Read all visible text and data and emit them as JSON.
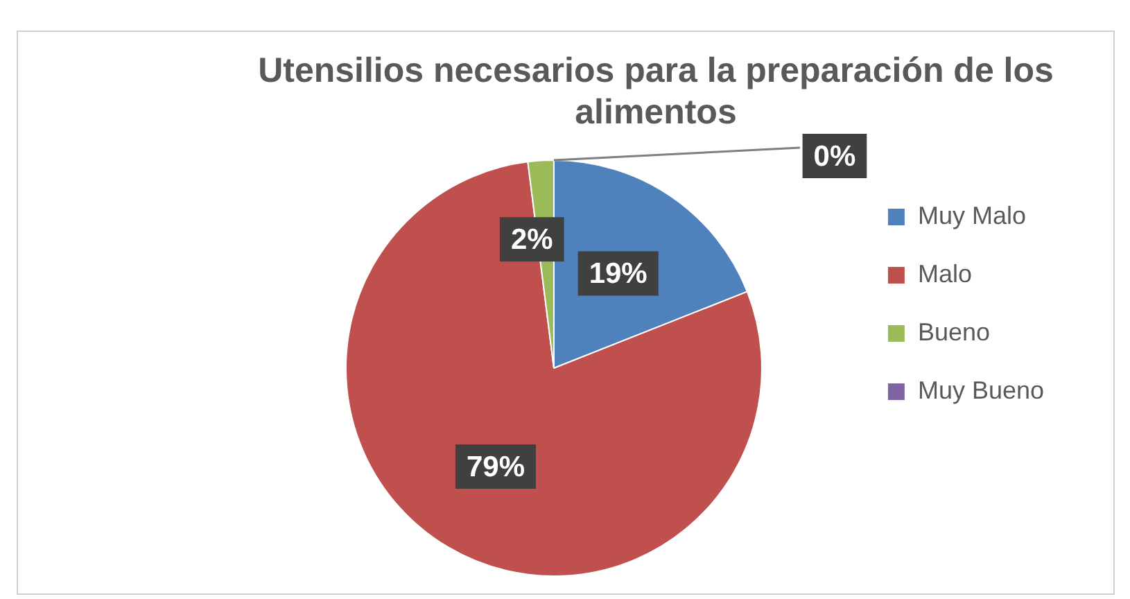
{
  "chart_data": {
    "type": "pie",
    "title": "Utensilios necesarios para la preparación de los alimentos",
    "categories": [
      "Muy Malo",
      "Malo",
      "Bueno",
      "Muy Bueno"
    ],
    "values": [
      19,
      79,
      2,
      0
    ],
    "colors": [
      "#4f81bd",
      "#c0504d",
      "#9bbb59",
      "#8064a2"
    ],
    "value_labels": [
      "19%",
      "79%",
      "2%",
      "0%"
    ],
    "legend": "right"
  }
}
